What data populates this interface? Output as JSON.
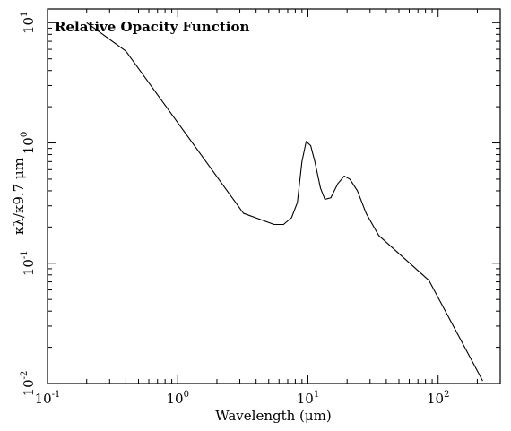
{
  "chart_data": {
    "type": "line",
    "title": "Relative Opacity Function",
    "xlabel": "Wavelength (μm)",
    "ylabel": "κλ/κ9.7 μm",
    "xscale": "log",
    "yscale": "log",
    "xlim": [
      0.1,
      300
    ],
    "ylim": [
      0.01,
      13
    ],
    "grid": false,
    "legend": "none",
    "x_ticks": [
      {
        "value": 0.1,
        "base": "10",
        "exp": "-1"
      },
      {
        "value": 1,
        "base": "10",
        "exp": "0"
      },
      {
        "value": 10,
        "base": "10",
        "exp": "1"
      },
      {
        "value": 100,
        "base": "10",
        "exp": "2"
      }
    ],
    "y_ticks": [
      {
        "value": 0.01,
        "base": "10",
        "exp": "-2"
      },
      {
        "value": 0.1,
        "base": "10",
        "exp": "-1"
      },
      {
        "value": 1,
        "base": "10",
        "exp": "0"
      },
      {
        "value": 10,
        "base": "10",
        "exp": "1"
      }
    ],
    "series": [
      {
        "x": [
          0.2,
          0.4,
          3.2,
          5.5,
          6.5,
          7.5,
          8.3,
          9.0,
          9.7,
          10.5,
          11.3,
          12.5,
          13.5,
          15,
          17,
          19,
          21,
          24,
          28,
          35,
          85,
          220
        ],
        "y": [
          10.0,
          5.8,
          0.26,
          0.21,
          0.21,
          0.24,
          0.32,
          0.7,
          1.03,
          0.95,
          0.7,
          0.42,
          0.34,
          0.35,
          0.46,
          0.53,
          0.5,
          0.4,
          0.26,
          0.17,
          0.072,
          0.0105
        ]
      }
    ],
    "colors": {
      "line": "#000000",
      "axes": "#000000",
      "background": "#ffffff"
    }
  }
}
